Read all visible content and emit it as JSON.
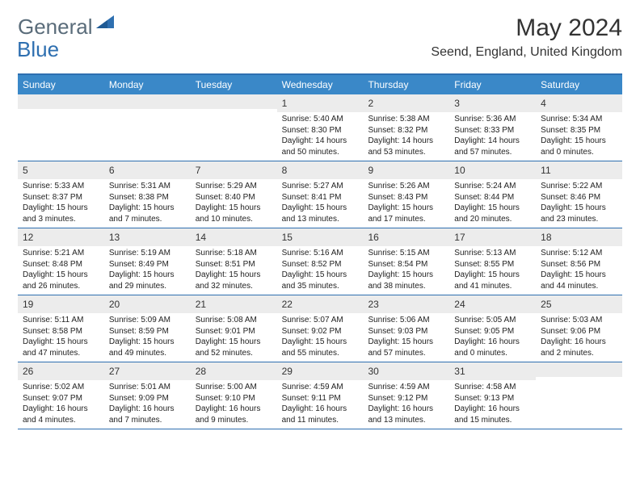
{
  "brand": {
    "name_part1": "General",
    "name_part2": "Blue"
  },
  "header": {
    "month_title": "May 2024",
    "location": "Seend, England, United Kingdom"
  },
  "colors": {
    "header_bg": "#3a88c8",
    "header_border": "#2e6fb0",
    "daynum_bg": "#ececec",
    "text": "#333333",
    "brand_gray": "#5a6c7a",
    "brand_blue": "#2e6fb0"
  },
  "daynames": [
    "Sunday",
    "Monday",
    "Tuesday",
    "Wednesday",
    "Thursday",
    "Friday",
    "Saturday"
  ],
  "weeks": [
    [
      {
        "day": "",
        "sunrise": "",
        "sunset": "",
        "daylight": ""
      },
      {
        "day": "",
        "sunrise": "",
        "sunset": "",
        "daylight": ""
      },
      {
        "day": "",
        "sunrise": "",
        "sunset": "",
        "daylight": ""
      },
      {
        "day": "1",
        "sunrise": "Sunrise: 5:40 AM",
        "sunset": "Sunset: 8:30 PM",
        "daylight": "Daylight: 14 hours and 50 minutes."
      },
      {
        "day": "2",
        "sunrise": "Sunrise: 5:38 AM",
        "sunset": "Sunset: 8:32 PM",
        "daylight": "Daylight: 14 hours and 53 minutes."
      },
      {
        "day": "3",
        "sunrise": "Sunrise: 5:36 AM",
        "sunset": "Sunset: 8:33 PM",
        "daylight": "Daylight: 14 hours and 57 minutes."
      },
      {
        "day": "4",
        "sunrise": "Sunrise: 5:34 AM",
        "sunset": "Sunset: 8:35 PM",
        "daylight": "Daylight: 15 hours and 0 minutes."
      }
    ],
    [
      {
        "day": "5",
        "sunrise": "Sunrise: 5:33 AM",
        "sunset": "Sunset: 8:37 PM",
        "daylight": "Daylight: 15 hours and 3 minutes."
      },
      {
        "day": "6",
        "sunrise": "Sunrise: 5:31 AM",
        "sunset": "Sunset: 8:38 PM",
        "daylight": "Daylight: 15 hours and 7 minutes."
      },
      {
        "day": "7",
        "sunrise": "Sunrise: 5:29 AM",
        "sunset": "Sunset: 8:40 PM",
        "daylight": "Daylight: 15 hours and 10 minutes."
      },
      {
        "day": "8",
        "sunrise": "Sunrise: 5:27 AM",
        "sunset": "Sunset: 8:41 PM",
        "daylight": "Daylight: 15 hours and 13 minutes."
      },
      {
        "day": "9",
        "sunrise": "Sunrise: 5:26 AM",
        "sunset": "Sunset: 8:43 PM",
        "daylight": "Daylight: 15 hours and 17 minutes."
      },
      {
        "day": "10",
        "sunrise": "Sunrise: 5:24 AM",
        "sunset": "Sunset: 8:44 PM",
        "daylight": "Daylight: 15 hours and 20 minutes."
      },
      {
        "day": "11",
        "sunrise": "Sunrise: 5:22 AM",
        "sunset": "Sunset: 8:46 PM",
        "daylight": "Daylight: 15 hours and 23 minutes."
      }
    ],
    [
      {
        "day": "12",
        "sunrise": "Sunrise: 5:21 AM",
        "sunset": "Sunset: 8:48 PM",
        "daylight": "Daylight: 15 hours and 26 minutes."
      },
      {
        "day": "13",
        "sunrise": "Sunrise: 5:19 AM",
        "sunset": "Sunset: 8:49 PM",
        "daylight": "Daylight: 15 hours and 29 minutes."
      },
      {
        "day": "14",
        "sunrise": "Sunrise: 5:18 AM",
        "sunset": "Sunset: 8:51 PM",
        "daylight": "Daylight: 15 hours and 32 minutes."
      },
      {
        "day": "15",
        "sunrise": "Sunrise: 5:16 AM",
        "sunset": "Sunset: 8:52 PM",
        "daylight": "Daylight: 15 hours and 35 minutes."
      },
      {
        "day": "16",
        "sunrise": "Sunrise: 5:15 AM",
        "sunset": "Sunset: 8:54 PM",
        "daylight": "Daylight: 15 hours and 38 minutes."
      },
      {
        "day": "17",
        "sunrise": "Sunrise: 5:13 AM",
        "sunset": "Sunset: 8:55 PM",
        "daylight": "Daylight: 15 hours and 41 minutes."
      },
      {
        "day": "18",
        "sunrise": "Sunrise: 5:12 AM",
        "sunset": "Sunset: 8:56 PM",
        "daylight": "Daylight: 15 hours and 44 minutes."
      }
    ],
    [
      {
        "day": "19",
        "sunrise": "Sunrise: 5:11 AM",
        "sunset": "Sunset: 8:58 PM",
        "daylight": "Daylight: 15 hours and 47 minutes."
      },
      {
        "day": "20",
        "sunrise": "Sunrise: 5:09 AM",
        "sunset": "Sunset: 8:59 PM",
        "daylight": "Daylight: 15 hours and 49 minutes."
      },
      {
        "day": "21",
        "sunrise": "Sunrise: 5:08 AM",
        "sunset": "Sunset: 9:01 PM",
        "daylight": "Daylight: 15 hours and 52 minutes."
      },
      {
        "day": "22",
        "sunrise": "Sunrise: 5:07 AM",
        "sunset": "Sunset: 9:02 PM",
        "daylight": "Daylight: 15 hours and 55 minutes."
      },
      {
        "day": "23",
        "sunrise": "Sunrise: 5:06 AM",
        "sunset": "Sunset: 9:03 PM",
        "daylight": "Daylight: 15 hours and 57 minutes."
      },
      {
        "day": "24",
        "sunrise": "Sunrise: 5:05 AM",
        "sunset": "Sunset: 9:05 PM",
        "daylight": "Daylight: 16 hours and 0 minutes."
      },
      {
        "day": "25",
        "sunrise": "Sunrise: 5:03 AM",
        "sunset": "Sunset: 9:06 PM",
        "daylight": "Daylight: 16 hours and 2 minutes."
      }
    ],
    [
      {
        "day": "26",
        "sunrise": "Sunrise: 5:02 AM",
        "sunset": "Sunset: 9:07 PM",
        "daylight": "Daylight: 16 hours and 4 minutes."
      },
      {
        "day": "27",
        "sunrise": "Sunrise: 5:01 AM",
        "sunset": "Sunset: 9:09 PM",
        "daylight": "Daylight: 16 hours and 7 minutes."
      },
      {
        "day": "28",
        "sunrise": "Sunrise: 5:00 AM",
        "sunset": "Sunset: 9:10 PM",
        "daylight": "Daylight: 16 hours and 9 minutes."
      },
      {
        "day": "29",
        "sunrise": "Sunrise: 4:59 AM",
        "sunset": "Sunset: 9:11 PM",
        "daylight": "Daylight: 16 hours and 11 minutes."
      },
      {
        "day": "30",
        "sunrise": "Sunrise: 4:59 AM",
        "sunset": "Sunset: 9:12 PM",
        "daylight": "Daylight: 16 hours and 13 minutes."
      },
      {
        "day": "31",
        "sunrise": "Sunrise: 4:58 AM",
        "sunset": "Sunset: 9:13 PM",
        "daylight": "Daylight: 16 hours and 15 minutes."
      },
      {
        "day": "",
        "sunrise": "",
        "sunset": "",
        "daylight": ""
      }
    ]
  ]
}
